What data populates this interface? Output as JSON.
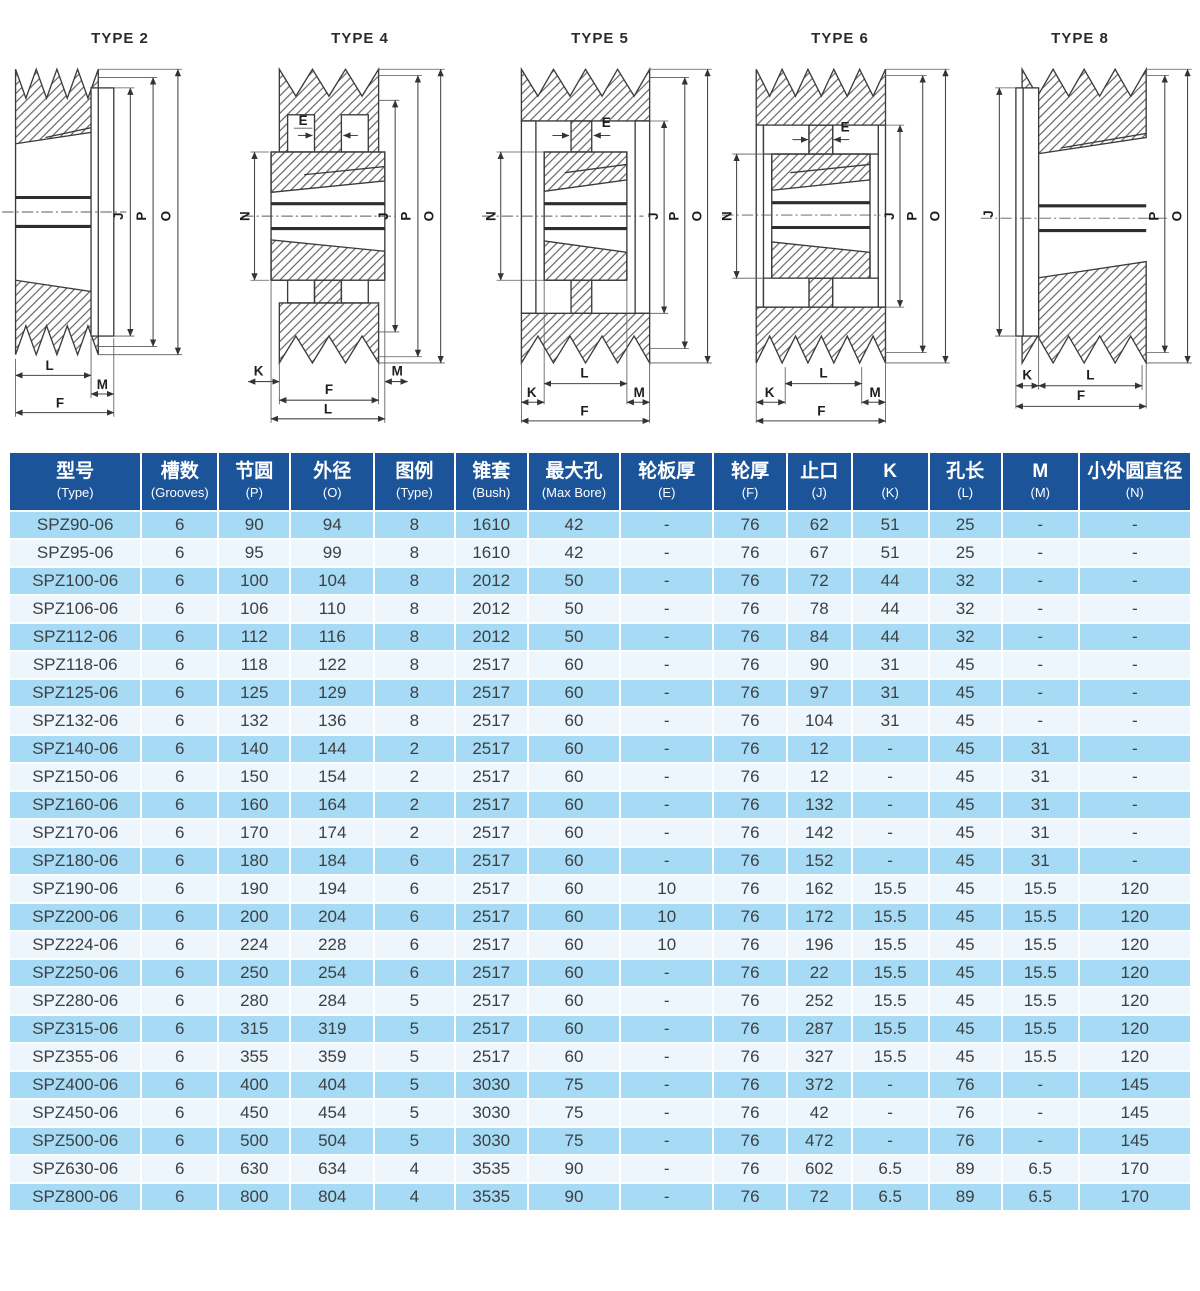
{
  "dims": {
    "E": "E",
    "F": "F",
    "J": "J",
    "K": "K",
    "L": "L",
    "M": "M",
    "N": "N",
    "O": "O",
    "P": "P"
  },
  "drawings": [
    {
      "title": "TYPE 2"
    },
    {
      "title": "TYPE 4"
    },
    {
      "title": "TYPE 5"
    },
    {
      "title": "TYPE 6"
    },
    {
      "title": "TYPE 8"
    }
  ],
  "colors": {
    "header_bg": "#1b5499",
    "row_odd": "#a7dbf5",
    "row_even": "#edf6fc",
    "header_text": "#ffffff",
    "body_text": "#3c4043",
    "drawing_line": "#3c3c3c"
  },
  "table": {
    "headers": [
      {
        "cn": "型号",
        "en": "(Type)"
      },
      {
        "cn": "槽数",
        "en": "(Grooves)"
      },
      {
        "cn": "节圆",
        "en": "(P)"
      },
      {
        "cn": "外径",
        "en": "(O)"
      },
      {
        "cn": "图例",
        "en": "(Type)"
      },
      {
        "cn": "锥套",
        "en": "(Bush)"
      },
      {
        "cn": "最大孔",
        "en": "(Max Bore)"
      },
      {
        "cn": "轮板厚",
        "en": "(E)"
      },
      {
        "cn": "轮厚",
        "en": "(F)"
      },
      {
        "cn": "止口",
        "en": "(J)"
      },
      {
        "cn": "K",
        "en": "(K)"
      },
      {
        "cn": "孔长",
        "en": "(L)"
      },
      {
        "cn": "M",
        "en": "(M)"
      },
      {
        "cn": "小外圆直径",
        "en": "(N)"
      }
    ],
    "rows": [
      [
        "SPZ90-06",
        "6",
        "90",
        "94",
        "8",
        "1610",
        "42",
        "-",
        "76",
        "62",
        "51",
        "25",
        "-",
        "-"
      ],
      [
        "SPZ95-06",
        "6",
        "95",
        "99",
        "8",
        "1610",
        "42",
        "-",
        "76",
        "67",
        "51",
        "25",
        "-",
        "-"
      ],
      [
        "SPZ100-06",
        "6",
        "100",
        "104",
        "8",
        "2012",
        "50",
        "-",
        "76",
        "72",
        "44",
        "32",
        "-",
        "-"
      ],
      [
        "SPZ106-06",
        "6",
        "106",
        "110",
        "8",
        "2012",
        "50",
        "-",
        "76",
        "78",
        "44",
        "32",
        "-",
        "-"
      ],
      [
        "SPZ112-06",
        "6",
        "112",
        "116",
        "8",
        "2012",
        "50",
        "-",
        "76",
        "84",
        "44",
        "32",
        "-",
        "-"
      ],
      [
        "SPZ118-06",
        "6",
        "118",
        "122",
        "8",
        "2517",
        "60",
        "-",
        "76",
        "90",
        "31",
        "45",
        "-",
        "-"
      ],
      [
        "SPZ125-06",
        "6",
        "125",
        "129",
        "8",
        "2517",
        "60",
        "-",
        "76",
        "97",
        "31",
        "45",
        "-",
        "-"
      ],
      [
        "SPZ132-06",
        "6",
        "132",
        "136",
        "8",
        "2517",
        "60",
        "-",
        "76",
        "104",
        "31",
        "45",
        "-",
        "-"
      ],
      [
        "SPZ140-06",
        "6",
        "140",
        "144",
        "2",
        "2517",
        "60",
        "-",
        "76",
        "12",
        "-",
        "45",
        "31",
        "-"
      ],
      [
        "SPZ150-06",
        "6",
        "150",
        "154",
        "2",
        "2517",
        "60",
        "-",
        "76",
        "12",
        "-",
        "45",
        "31",
        "-"
      ],
      [
        "SPZ160-06",
        "6",
        "160",
        "164",
        "2",
        "2517",
        "60",
        "-",
        "76",
        "132",
        "-",
        "45",
        "31",
        "-"
      ],
      [
        "SPZ170-06",
        "6",
        "170",
        "174",
        "2",
        "2517",
        "60",
        "-",
        "76",
        "142",
        "-",
        "45",
        "31",
        "-"
      ],
      [
        "SPZ180-06",
        "6",
        "180",
        "184",
        "6",
        "2517",
        "60",
        "-",
        "76",
        "152",
        "-",
        "45",
        "31",
        "-"
      ],
      [
        "SPZ190-06",
        "6",
        "190",
        "194",
        "6",
        "2517",
        "60",
        "10",
        "76",
        "162",
        "15.5",
        "45",
        "15.5",
        "120"
      ],
      [
        "SPZ200-06",
        "6",
        "200",
        "204",
        "6",
        "2517",
        "60",
        "10",
        "76",
        "172",
        "15.5",
        "45",
        "15.5",
        "120"
      ],
      [
        "SPZ224-06",
        "6",
        "224",
        "228",
        "6",
        "2517",
        "60",
        "10",
        "76",
        "196",
        "15.5",
        "45",
        "15.5",
        "120"
      ],
      [
        "SPZ250-06",
        "6",
        "250",
        "254",
        "6",
        "2517",
        "60",
        "-",
        "76",
        "22",
        "15.5",
        "45",
        "15.5",
        "120"
      ],
      [
        "SPZ280-06",
        "6",
        "280",
        "284",
        "5",
        "2517",
        "60",
        "-",
        "76",
        "252",
        "15.5",
        "45",
        "15.5",
        "120"
      ],
      [
        "SPZ315-06",
        "6",
        "315",
        "319",
        "5",
        "2517",
        "60",
        "-",
        "76",
        "287",
        "15.5",
        "45",
        "15.5",
        "120"
      ],
      [
        "SPZ355-06",
        "6",
        "355",
        "359",
        "5",
        "2517",
        "60",
        "-",
        "76",
        "327",
        "15.5",
        "45",
        "15.5",
        "120"
      ],
      [
        "SPZ400-06",
        "6",
        "400",
        "404",
        "5",
        "3030",
        "75",
        "-",
        "76",
        "372",
        "-",
        "76",
        "-",
        "145"
      ],
      [
        "SPZ450-06",
        "6",
        "450",
        "454",
        "5",
        "3030",
        "75",
        "-",
        "76",
        "42",
        "-",
        "76",
        "-",
        "145"
      ],
      [
        "SPZ500-06",
        "6",
        "500",
        "504",
        "5",
        "3030",
        "75",
        "-",
        "76",
        "472",
        "-",
        "76",
        "-",
        "145"
      ],
      [
        "SPZ630-06",
        "6",
        "630",
        "634",
        "4",
        "3535",
        "90",
        "-",
        "76",
        "602",
        "6.5",
        "89",
        "6.5",
        "170"
      ],
      [
        "SPZ800-06",
        "6",
        "800",
        "804",
        "4",
        "3535",
        "90",
        "-",
        "76",
        "72",
        "6.5",
        "89",
        "6.5",
        "170"
      ]
    ]
  }
}
